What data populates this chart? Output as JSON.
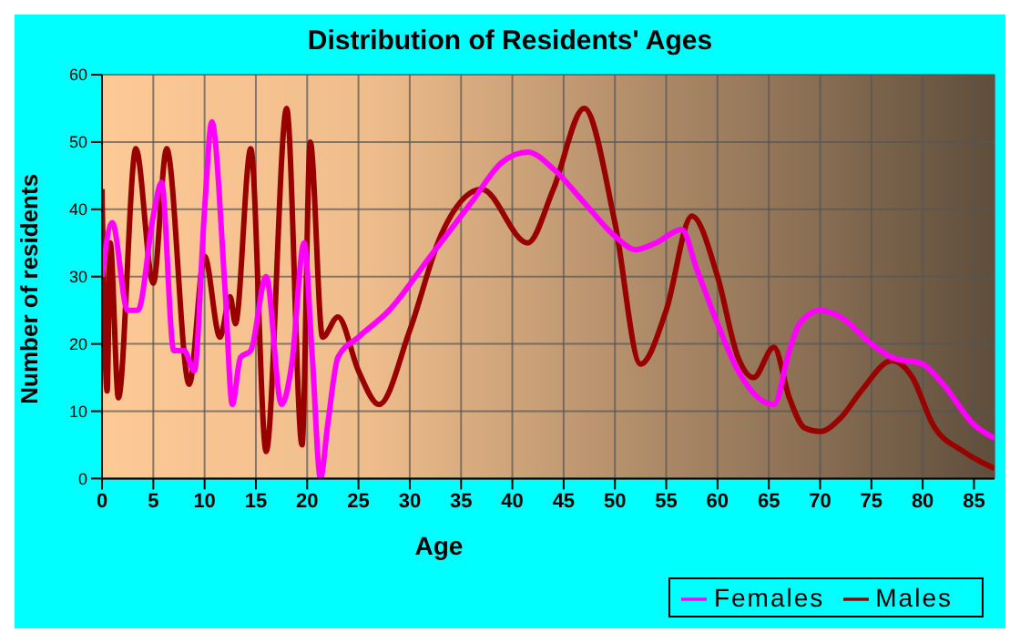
{
  "chart_data": {
    "type": "line",
    "title": "Distribution of Residents' Ages",
    "xlabel": "Age",
    "ylabel": "Number of residents",
    "xlim": [
      0,
      87
    ],
    "xticks": [
      0,
      5,
      10,
      15,
      20,
      25,
      30,
      35,
      40,
      45,
      50,
      55,
      60,
      65,
      70,
      75,
      80,
      85
    ],
    "ylim": [
      0,
      60
    ],
    "yticks": [
      0,
      10,
      20,
      30,
      40,
      50,
      60
    ],
    "grid": true,
    "legend": "bottom right",
    "marker": "none",
    "line_style": "solid",
    "series": [
      {
        "name": "Males",
        "color": "#990000",
        "x": [
          0,
          0.5,
          0.8,
          1.6,
          3.3,
          5,
          6.3,
          8.5,
          10,
          11.5,
          12.5,
          13,
          14.5,
          16,
          18,
          19.5,
          20.3,
          21.5,
          23,
          25,
          27,
          30,
          33,
          37,
          41.5,
          44,
          47,
          50,
          52.5,
          55,
          57.5,
          60,
          62,
          63.5,
          65.5,
          67,
          68.5,
          70,
          72,
          74,
          77,
          79,
          81,
          84,
          87
        ],
        "values": [
          43,
          13,
          35,
          12,
          49,
          29,
          49,
          14,
          33,
          21,
          27,
          23,
          49,
          4,
          55,
          5,
          50,
          21,
          24,
          16,
          11,
          22,
          36,
          43,
          35,
          43,
          55,
          38,
          17,
          25,
          39,
          30,
          18,
          15,
          19.5,
          12,
          7.5,
          7,
          9,
          13,
          17.5,
          15,
          8,
          4,
          1.5
        ]
      },
      {
        "name": "Females",
        "color": "#ff00ff",
        "x": [
          0,
          1,
          2.5,
          3.5,
          5,
          5.8,
          7,
          8,
          9,
          10,
          10.7,
          12,
          12.7,
          13.5,
          14.5,
          16,
          17.5,
          18.5,
          19.7,
          20.5,
          21.3,
          22,
          23,
          25,
          28,
          32,
          36,
          39,
          41.5,
          44,
          47,
          50,
          52,
          54,
          56.5,
          58,
          60,
          62,
          65.5,
          67,
          68,
          70,
          72,
          75,
          77,
          80,
          82,
          85,
          87
        ],
        "values": [
          30,
          38,
          25,
          25,
          39,
          44,
          19,
          19,
          16,
          40,
          53,
          28,
          11,
          18,
          19,
          30,
          11,
          17,
          35,
          18,
          0,
          8,
          18,
          21,
          25,
          33,
          41,
          47,
          48.5,
          46,
          41,
          36,
          34,
          35,
          37,
          31,
          23,
          16,
          11,
          19,
          23,
          25,
          24,
          20,
          18,
          17,
          14,
          8,
          6
        ]
      }
    ]
  }
}
